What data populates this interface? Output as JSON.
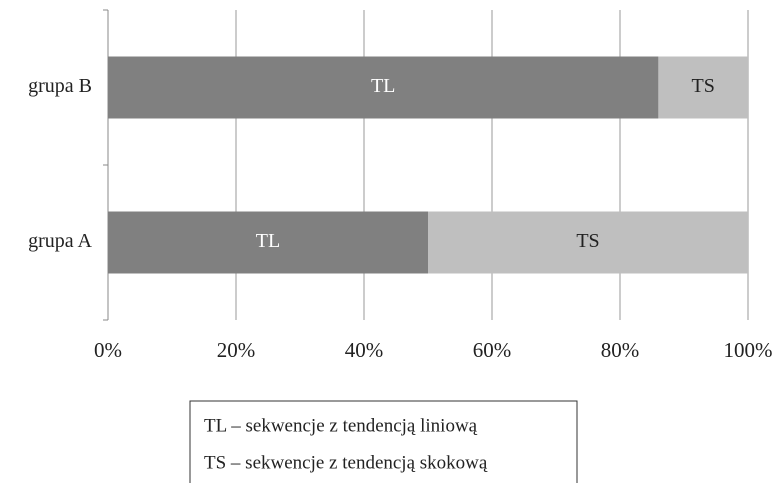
{
  "chart_data": {
    "type": "stacked_barh",
    "categories": [
      "grupa B",
      "grupa A"
    ],
    "series": [
      {
        "name": "TL",
        "color": "#808080",
        "values": [
          86,
          50
        ]
      },
      {
        "name": "TS",
        "color": "#bfbfbf",
        "values": [
          14,
          50
        ]
      }
    ],
    "xlim": [
      0,
      100
    ],
    "xticks": [
      {
        "value": 0,
        "label": "0%"
      },
      {
        "value": 20,
        "label": "20%"
      },
      {
        "value": 40,
        "label": "40%"
      },
      {
        "value": 60,
        "label": "60%"
      },
      {
        "value": 80,
        "label": "80%"
      },
      {
        "value": 100,
        "label": "100%"
      }
    ],
    "grid": true,
    "legend_text": [
      "TL – sekwencje z tendencją liniową",
      "TS – sekwencje z tendencją skokową"
    ]
  }
}
